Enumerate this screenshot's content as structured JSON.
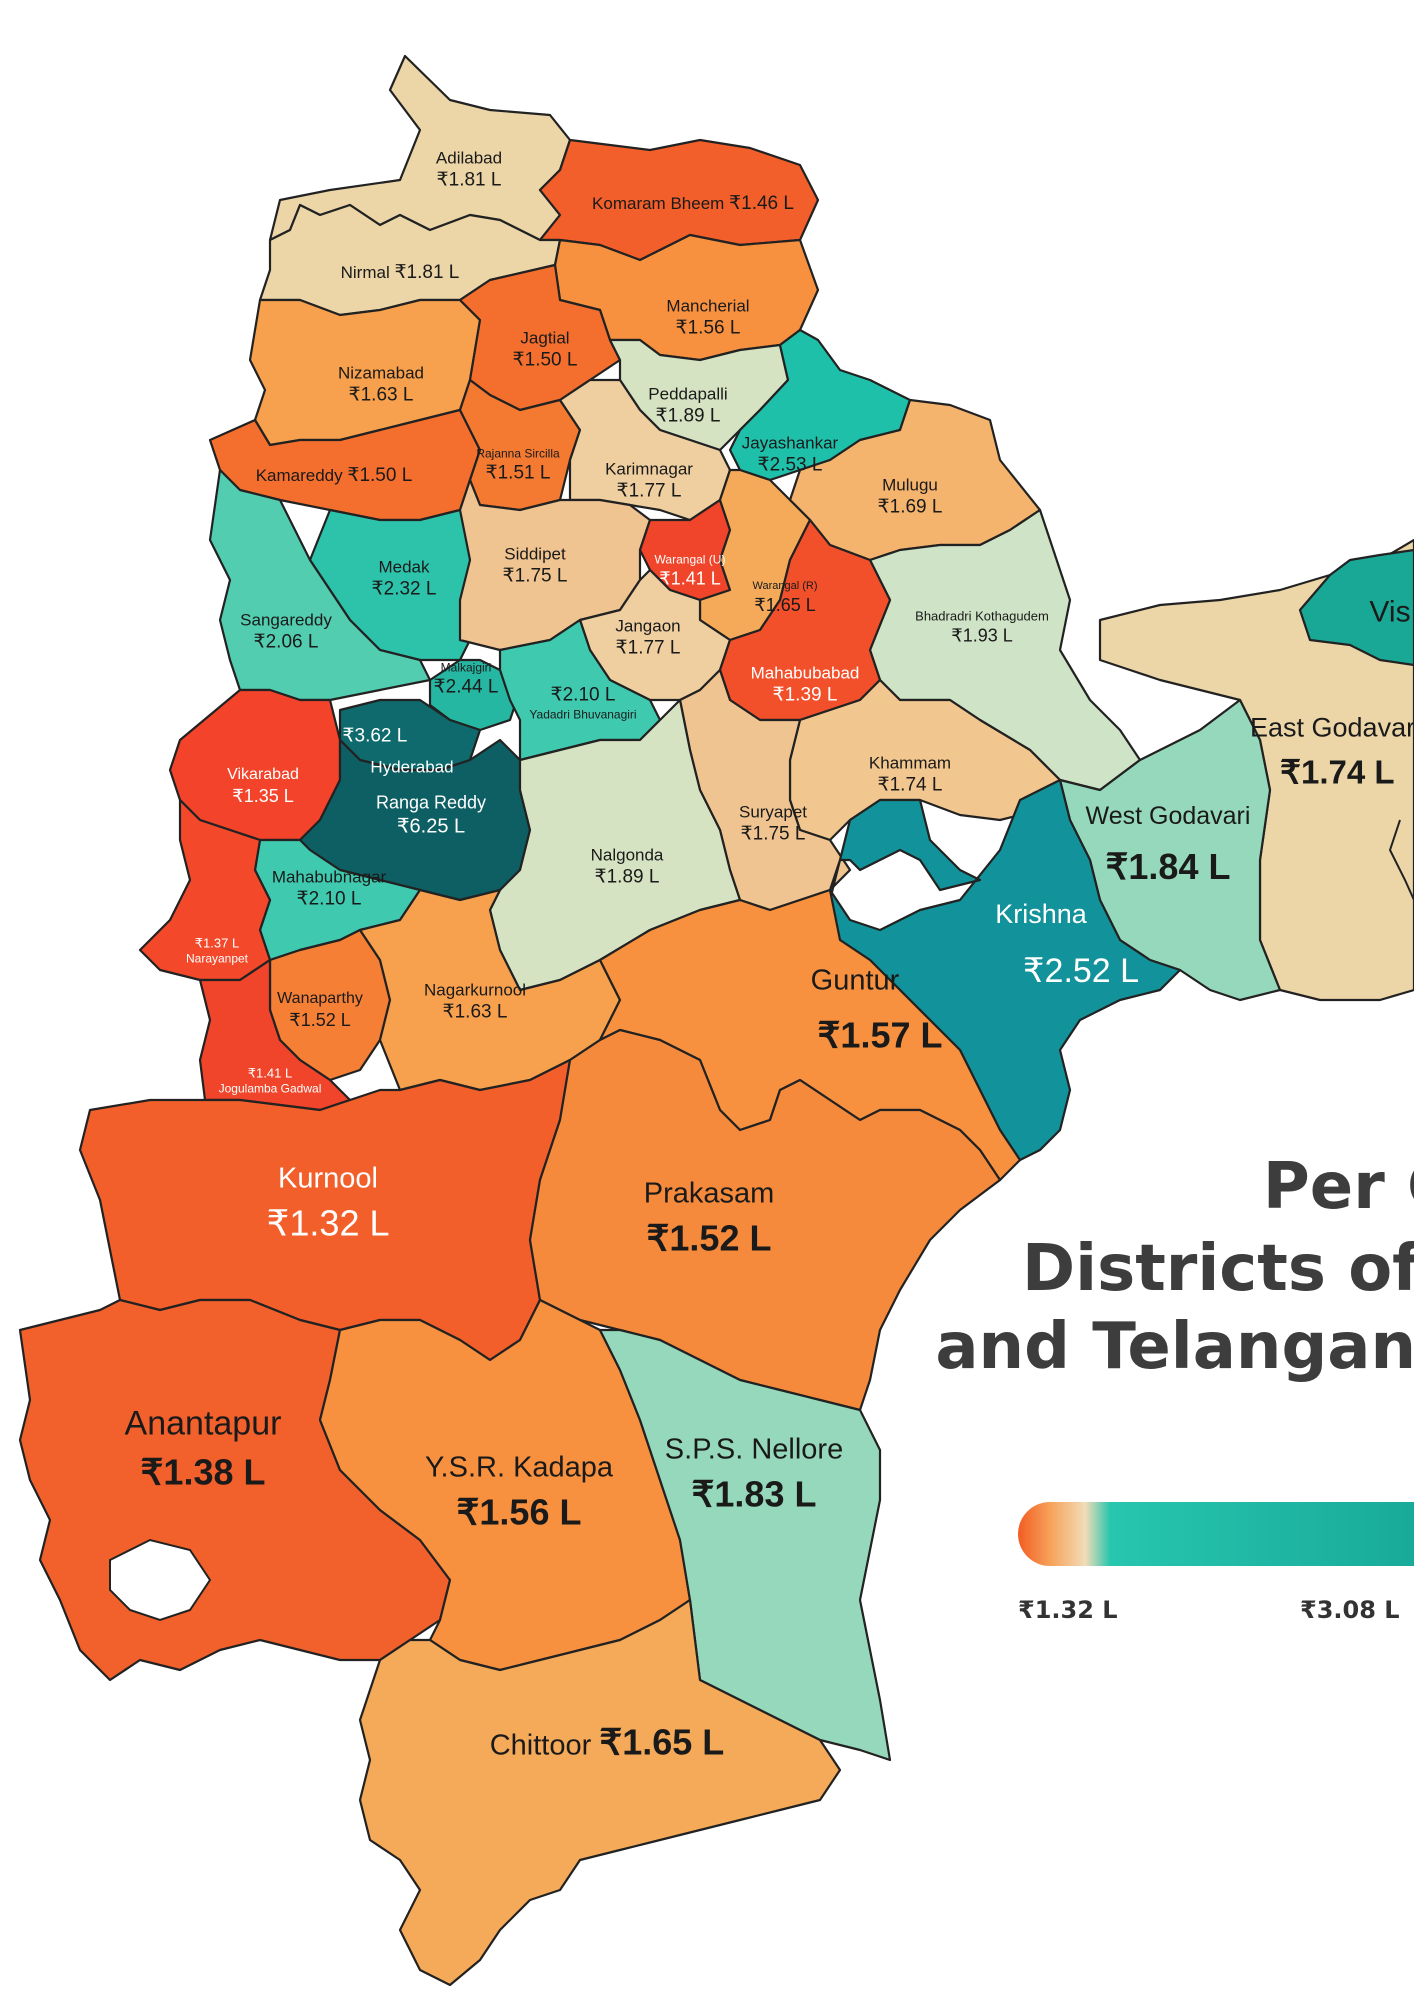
{
  "title": {
    "line1": "Per C",
    "line2": "Districts of",
    "line3": "and Telangan"
  },
  "legend": {
    "min_label": "₹1.32 L",
    "mid_label": "₹3.08 L",
    "colors": [
      "#f25d23",
      "#f6a45c",
      "#f2dcb8",
      "#27c6ae",
      "#17a898"
    ]
  },
  "colors": {
    "darkest_orange": "#f0452a",
    "orange_red": "#f25f2a",
    "orange": "#f7913f",
    "light_orange": "#f5b46e",
    "beige": "#ecd6a8",
    "pale_green": "#d6e3c2",
    "mint": "#95d8bb",
    "medium_teal": "#52cdb0",
    "teal": "#1fc0aa",
    "dark_teal": "#12929a",
    "darkest_teal": "#0d5f63"
  },
  "districts": [
    {
      "name": "Adilabad",
      "value": "₹1.81 L",
      "color": "#ecd6a8"
    },
    {
      "name": "Komaram Bheem",
      "value": "₹1.46 L",
      "color": "#f25f2a"
    },
    {
      "name": "Nirmal",
      "value": "₹1.81 L",
      "color": "#ecd6a8"
    },
    {
      "name": "Mancherial",
      "value": "₹1.56 L",
      "color": "#f7913f"
    },
    {
      "name": "Nizamabad",
      "value": "₹1.63 L",
      "color": "#f7a04d"
    },
    {
      "name": "Jagtial",
      "value": "₹1.50 L",
      "color": "#f46f2d"
    },
    {
      "name": "Peddapalli",
      "value": "₹1.89 L",
      "color": "#d6e3c2"
    },
    {
      "name": "Jayashankar",
      "value": "₹2.53 L",
      "color": "#1fc0aa"
    },
    {
      "name": "Kamareddy",
      "value": "₹1.50 L",
      "color": "#f46f2d"
    },
    {
      "name": "Rajanna Sircilla",
      "value": "₹1.51 L",
      "color": "#f47a32"
    },
    {
      "name": "Karimnagar",
      "value": "₹1.77 L",
      "color": "#efcfa0"
    },
    {
      "name": "Mulugu",
      "value": "₹1.69 L",
      "color": "#f5b46e"
    },
    {
      "name": "Medak",
      "value": "₹2.32 L",
      "color": "#2dc3ab"
    },
    {
      "name": "Siddipet",
      "value": "₹1.75 L",
      "color": "#f0c490"
    },
    {
      "name": "Warangal (U)",
      "value": "₹1.41 L",
      "color": "#f0452a"
    },
    {
      "name": "Warangal (R)",
      "value": "₹1.65 L",
      "color": "#f5aa5a"
    },
    {
      "name": "Sangareddy",
      "value": "₹2.06 L",
      "color": "#52cdb0"
    },
    {
      "name": "Jangaon",
      "value": "₹1.77 L",
      "color": "#efcfa0"
    },
    {
      "name": "Bhadradri Kothagudem",
      "value": "₹1.93 L",
      "color": "#cfe4c6"
    },
    {
      "name": "Malkajgiri",
      "value": "₹2.44 L",
      "color": "#26b7a3"
    },
    {
      "name": "Yadadri Bhuvanagiri",
      "value": "₹2.10 L",
      "color": "#3fcab0"
    },
    {
      "name": "Mahabubabad",
      "value": "₹1.39 L",
      "color": "#f2502b"
    },
    {
      "name": "Hyderabad",
      "value": "₹3.62 L",
      "color": "#0e6a6c"
    },
    {
      "name": "Vikarabad",
      "value": "₹1.35 L",
      "color": "#f3432a"
    },
    {
      "name": "Ranga Reddy",
      "value": "₹6.25 L",
      "color": "#0d5f63"
    },
    {
      "name": "Khammam",
      "value": "₹1.74 L",
      "color": "#f2c68f"
    },
    {
      "name": "Suryapet",
      "value": "₹1.75 L",
      "color": "#f0c490"
    },
    {
      "name": "Nalgonda",
      "value": "₹1.89 L",
      "color": "#d6e3c2"
    },
    {
      "name": "Mahabubnagar",
      "value": "₹2.10 L",
      "color": "#3fcab0"
    },
    {
      "name": "Narayanpet",
      "value": "₹1.37 L",
      "color": "#f3482a"
    },
    {
      "name": "Wanaparthy",
      "value": "₹1.52 L",
      "color": "#f47f35"
    },
    {
      "name": "Nagarkurnool",
      "value": "₹1.63 L",
      "color": "#f7a04d"
    },
    {
      "name": "Jogulamba Gadwal",
      "value": "₹1.41 L",
      "color": "#f0452a"
    },
    {
      "name": "East Godavari",
      "value": "₹1.74 L",
      "color": "#ecd6a8"
    },
    {
      "name": "West Godavari",
      "value": "₹1.84 L",
      "color": "#95d8bb"
    },
    {
      "name": "Krishna",
      "value": "₹2.52 L",
      "color": "#12929a"
    },
    {
      "name": "Guntur",
      "value": "₹1.57 L",
      "color": "#f7913f"
    },
    {
      "name": "Kurnool",
      "value": "₹1.32 L",
      "color": "#f25f2a"
    },
    {
      "name": "Prakasam",
      "value": "₹1.52 L",
      "color": "#f68a3c"
    },
    {
      "name": "Anantapur",
      "value": "₹1.38 L",
      "color": "#f2612b"
    },
    {
      "name": "Y.S.R. Kadapa",
      "value": "₹1.56 L",
      "color": "#f7913f"
    },
    {
      "name": "S.P.S. Nellore",
      "value": "₹1.83 L",
      "color": "#95d8bb"
    },
    {
      "name": "Chittoor",
      "value": "₹1.65 L",
      "color": "#f5aa5a"
    },
    {
      "name": "Vis",
      "value": "",
      "color": "#1aa896"
    }
  ]
}
